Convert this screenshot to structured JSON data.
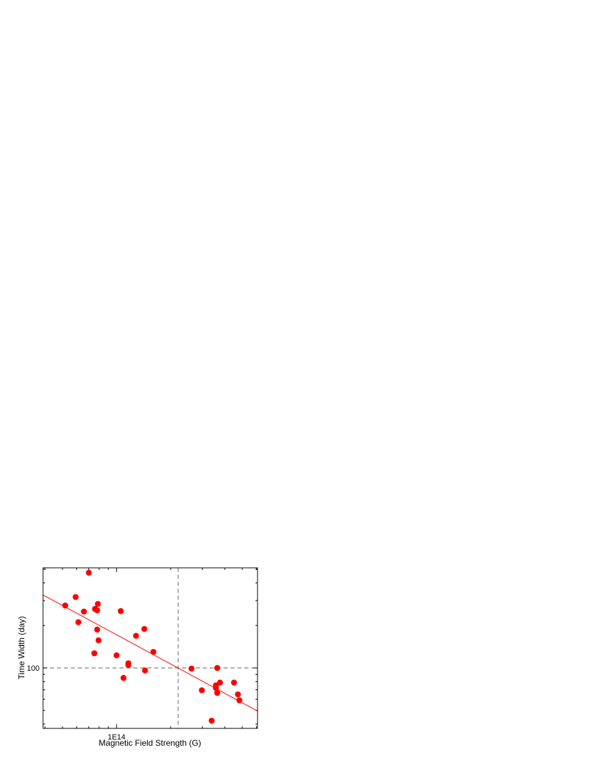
{
  "chart_data": {
    "type": "scatter",
    "x_label": "Magnetic Field Strength (G)",
    "y_label": "Time Width (day)",
    "x_log": true,
    "y_log": true,
    "xlim": [
      39000000000000.0,
      608000000000000.0
    ],
    "ylim": [
      37.3,
      512
    ],
    "xticks": [
      {
        "value": 100000000000000.0,
        "label": "1E14"
      }
    ],
    "yticks": [
      100
    ],
    "x_minor_ticks": [
      40000000000000.0,
      50000000000000.0,
      60000000000000.0,
      70000000000000.0,
      80000000000000.0,
      90000000000000.0,
      200000000000000.0,
      300000000000000.0,
      400000000000000.0,
      500000000000000.0,
      600000000000000.0
    ],
    "y_minor_ticks": [
      40,
      50,
      60,
      70,
      80,
      90,
      200,
      300,
      400,
      500
    ],
    "ref_x": 220000000000000.0,
    "ref_y": 100,
    "ref_color": "#808080",
    "series": [
      {
        "color": "#ff0000",
        "x": [
          51800000000000.0,
          59200000000000.0,
          61300000000000.0,
          65800000000000.0,
          70100000000000.0,
          75900000000000.0,
          78000000000000.0,
          78700000000000.0,
          78000000000000.0,
          79400000000000.0,
          75200000000000.0,
          100000000000000.0,
          105500000000000.0,
          109300000000000.0,
          116300000000000.0,
          116300000000000.0,
          128300000000000.0,
          142700000000000.0,
          143900000000000.0,
          160200000000000.0,
          261000000000000.0,
          298000000000000.0,
          338000000000000.0,
          357000000000000.0,
          357000000000000.0,
          363000000000000.0,
          363000000000000.0,
          376000000000000.0,
          450000000000000.0,
          473000000000000.0,
          482000000000000.0
        ],
        "values": [
          277,
          318,
          211,
          251,
          473,
          262,
          256,
          284,
          187,
          157,
          127,
          123,
          253,
          85,
          108,
          105,
          169,
          189,
          96,
          130,
          99,
          69.5,
          42.3,
          75.3,
          72,
          100,
          66.5,
          78.8,
          78.8,
          65,
          59
        ]
      },
      {
        "type": "line",
        "color": "#ff0000",
        "x": [
          39000000000000.0,
          608000000000000.0
        ],
        "values": [
          329,
          49.5
        ]
      }
    ]
  }
}
